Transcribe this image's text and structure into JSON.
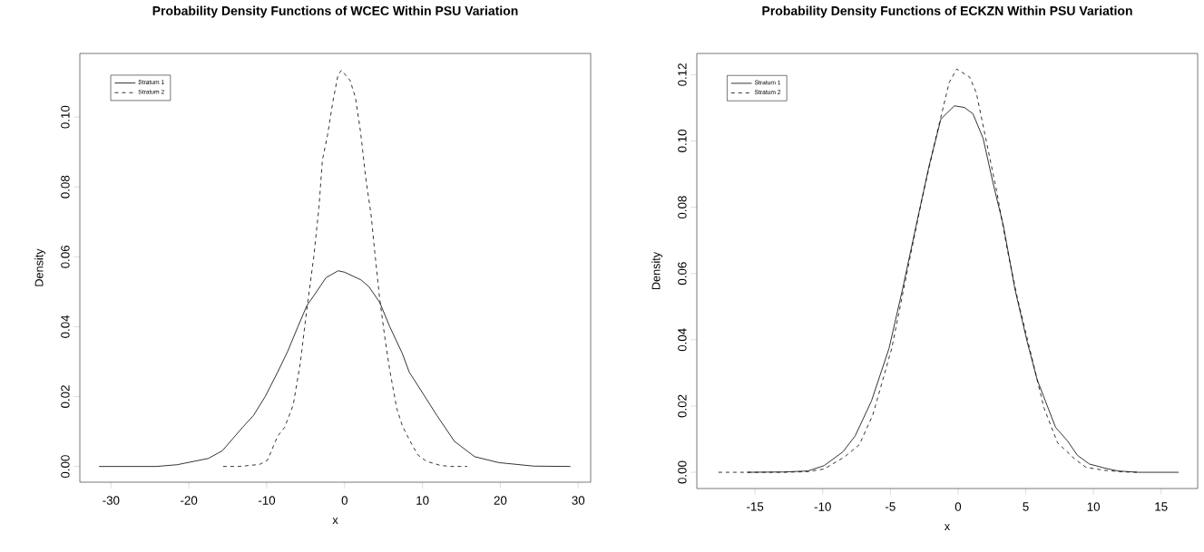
{
  "chart_data": [
    {
      "type": "line",
      "title": "Probability Density Functions of WCEC Within PSU Variation",
      "xlabel": "x",
      "ylabel": "Density",
      "legend": "top left",
      "xlim": [
        -34.0,
        31.6
      ],
      "ylim": [
        -0.0045,
        0.1182
      ],
      "xticks": [
        -30,
        -20,
        -10,
        0,
        10,
        20,
        30
      ],
      "yticks": [
        {
          "value": 0,
          "label": "0.00"
        },
        {
          "value": 0.02,
          "label": "0.02"
        },
        {
          "value": 0.04,
          "label": "0.04"
        },
        {
          "value": 0.06,
          "label": "0.06"
        },
        {
          "value": 0.08,
          "label": "0.08"
        },
        {
          "value": 0.1,
          "label": "0.10"
        }
      ],
      "series": [
        {
          "name": "Stratum 1",
          "color": "#000000",
          "line_style": "solid",
          "x": [
            -31.55,
            -24.2,
            -21.5,
            -17.5,
            -15.7,
            -13.1,
            -11.7,
            -10.2,
            -8.6,
            -7.3,
            -6.0,
            -4.85,
            -3.7,
            -2.4,
            -0.85,
            0.0,
            2.1,
            3.1,
            4.5,
            5.8,
            7.4,
            8.3,
            9.6,
            11.85,
            14.1,
            16.7,
            19.8,
            24.3,
            29.0
          ],
          "values": [
            0,
            0,
            0.0005,
            0.0023,
            0.0045,
            0.0112,
            0.0146,
            0.02,
            0.027,
            0.033,
            0.04,
            0.046,
            0.0497,
            0.054,
            0.056,
            0.0556,
            0.0534,
            0.0515,
            0.047,
            0.04,
            0.0324,
            0.027,
            0.0225,
            0.0146,
            0.0072,
            0.0028,
            0.0011,
            0.0001,
            0
          ]
        },
        {
          "name": "Stratum 2",
          "color": "#000000",
          "line_style": "dashed",
          "x": [
            -15.6,
            -13.5,
            -10.9,
            -9.9,
            -8.6,
            -7.7,
            -6.6,
            -5.7,
            -4.85,
            -3.96,
            -3.3,
            -2.85,
            -2.2,
            -1.5,
            -0.85,
            -0.4,
            0.7,
            1.4,
            2.05,
            2.7,
            3.4,
            3.8,
            4.5,
            5.2,
            5.8,
            6.7,
            7.4,
            8.3,
            9.4,
            10.5,
            12.3,
            13.6,
            15.75
          ],
          "values": [
            0,
            0,
            0.0006,
            0.0018,
            0.0087,
            0.0112,
            0.0176,
            0.0294,
            0.045,
            0.06,
            0.074,
            0.0877,
            0.0947,
            0.1045,
            0.112,
            0.1134,
            0.1105,
            0.1055,
            0.0957,
            0.0828,
            0.072,
            0.063,
            0.048,
            0.0364,
            0.0275,
            0.0166,
            0.0117,
            0.0077,
            0.0033,
            0.0015,
            0.0003,
            0,
            0
          ]
        }
      ]
    },
    {
      "type": "line",
      "title": "Probability Density Functions of ECKZN Within PSU Variation",
      "xlabel": "x",
      "ylabel": "Density",
      "legend": "top left",
      "xlim": [
        -19.3,
        17.7
      ],
      "ylim": [
        -0.0049,
        0.1264
      ],
      "xticks": [
        -15,
        -10,
        -5,
        0,
        5,
        10,
        15
      ],
      "yticks": [
        {
          "value": 0,
          "label": "0.00"
        },
        {
          "value": 0.02,
          "label": "0.02"
        },
        {
          "value": 0.04,
          "label": "0.04"
        },
        {
          "value": 0.06,
          "label": "0.06"
        },
        {
          "value": 0.08,
          "label": "0.08"
        },
        {
          "value": 0.1,
          "label": "0.10"
        },
        {
          "value": 0.12,
          "label": "0.12"
        }
      ],
      "series": [
        {
          "name": "Stratum 1",
          "color": "#000000",
          "line_style": "solid",
          "x": [
            -15.6,
            -12.9,
            -11.1,
            -9.9,
            -8.5,
            -7.6,
            -6.4,
            -5.1,
            -4.1,
            -3.1,
            -2.15,
            -1.27,
            -0.27,
            0.47,
            1.1,
            1.85,
            2.6,
            3.35,
            4.2,
            5.1,
            5.85,
            7.2,
            8.1,
            8.8,
            9.7,
            10.8,
            11.8,
            13.3,
            16.3
          ],
          "values": [
            0,
            0.0001,
            0.0004,
            0.002,
            0.0062,
            0.011,
            0.0215,
            0.0374,
            0.0553,
            0.0744,
            0.0923,
            0.1066,
            0.1106,
            0.1101,
            0.1082,
            0.1008,
            0.087,
            0.0744,
            0.0553,
            0.0395,
            0.0279,
            0.0136,
            0.0094,
            0.0052,
            0.0025,
            0.0013,
            0.0004,
            0,
            0
          ]
        },
        {
          "name": "Stratum 2",
          "color": "#000000",
          "line_style": "dashed",
          "x": [
            -17.7,
            -12.9,
            -11.1,
            -9.9,
            -8.4,
            -7.3,
            -6.3,
            -4.9,
            -3.6,
            -2.65,
            -1.65,
            -0.65,
            -0.1,
            0.85,
            1.35,
            2.1,
            2.85,
            3.6,
            4.35,
            5.35,
            6.35,
            7.35,
            8.6,
            9.45,
            10.8,
            12.3,
            13.3
          ],
          "values": [
            0,
            0,
            0.0002,
            0.001,
            0.0046,
            0.0083,
            0.0173,
            0.0374,
            0.0638,
            0.0828,
            0.1008,
            0.1177,
            0.1217,
            0.1193,
            0.1145,
            0.0997,
            0.0849,
            0.068,
            0.0532,
            0.0363,
            0.0194,
            0.0089,
            0.0041,
            0.0015,
            0.0006,
            0.0001,
            0
          ]
        }
      ]
    }
  ]
}
